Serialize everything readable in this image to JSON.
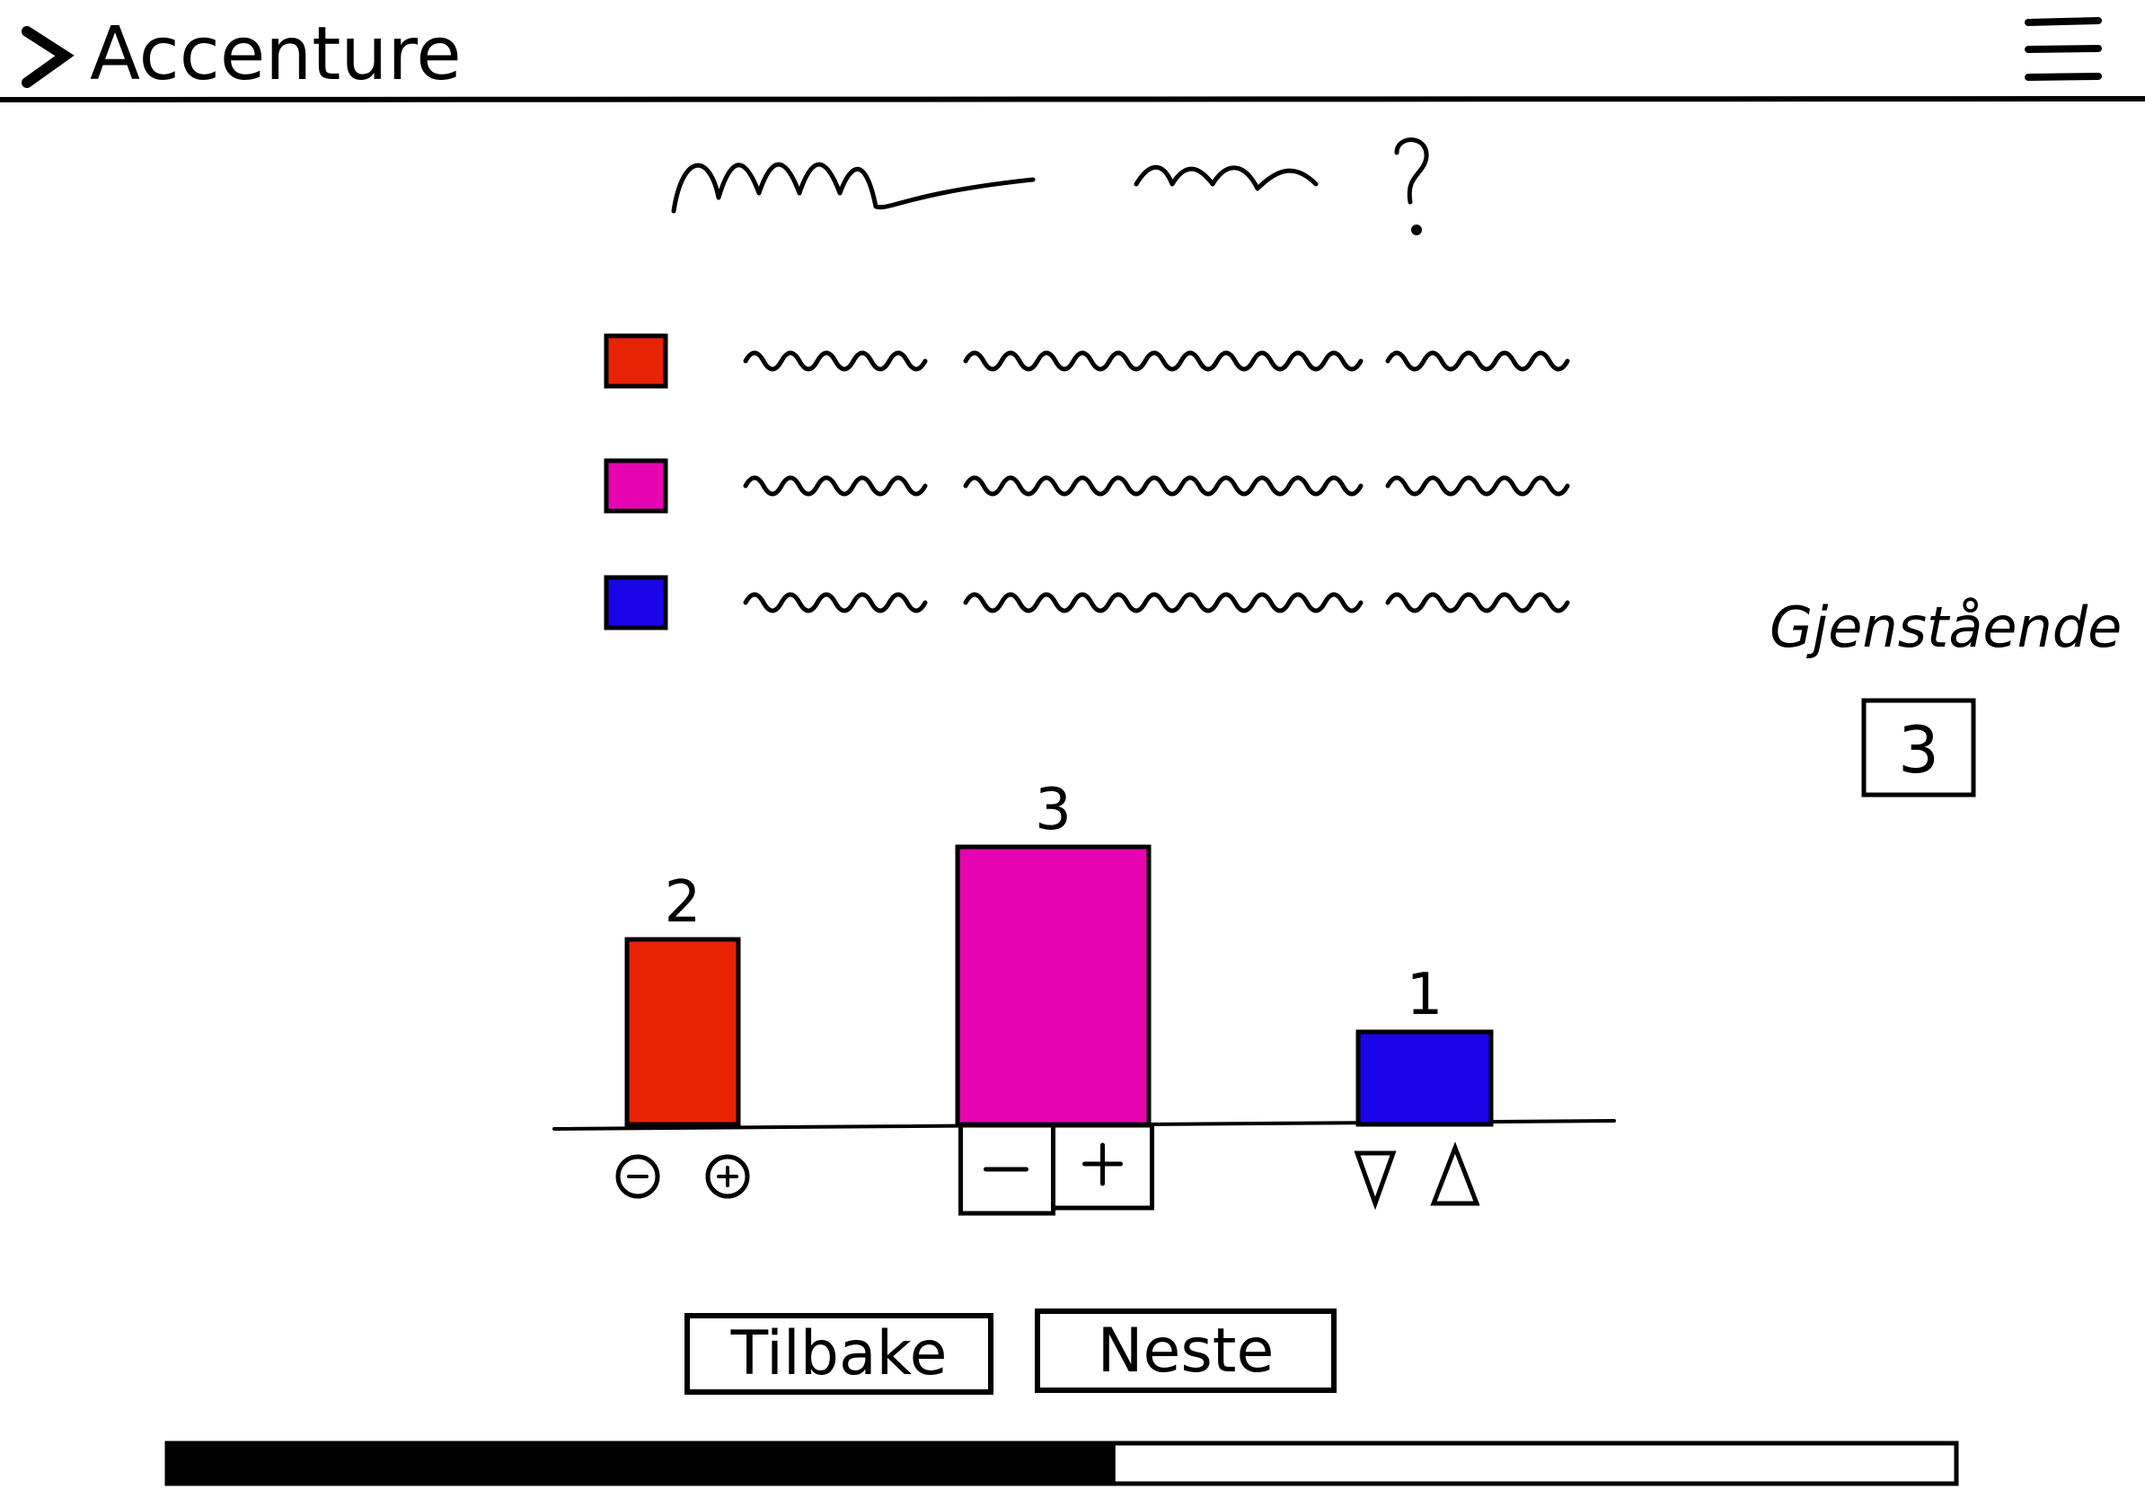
{
  "header": {
    "logo": "Accenture"
  },
  "remaining": {
    "label": "Gjenstående",
    "value": 3
  },
  "chart_data": {
    "type": "bar",
    "values": [
      2,
      3,
      1
    ],
    "colors": [
      "#e82205",
      "#e605b0",
      "#1a05e8"
    ]
  },
  "buttons": {
    "back": "Tilbake",
    "next": "Neste"
  },
  "progress": 53
}
